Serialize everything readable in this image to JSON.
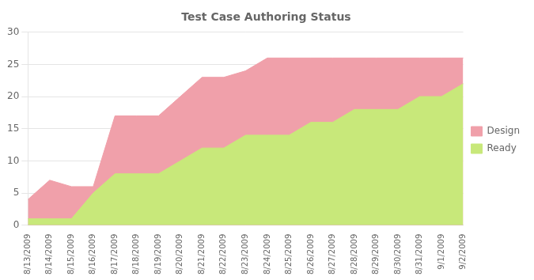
{
  "chart_data": {
    "type": "area",
    "title": "Test Case Authoring Status",
    "categories": [
      "8/13/2009",
      "8/14/2009",
      "8/15/2009",
      "8/16/2009",
      "8/17/2009",
      "8/18/2009",
      "8/19/2009",
      "8/20/2009",
      "8/21/2009",
      "8/22/2009",
      "8/23/2009",
      "8/24/2009",
      "8/25/2009",
      "8/26/2009",
      "8/27/2009",
      "8/28/2009",
      "8/29/2009",
      "8/30/2009",
      "8/31/2009",
      "9/1/2009",
      "9/2/2009"
    ],
    "series": [
      {
        "name": "Design",
        "color": "#f0a0aa",
        "values": [
          4,
          7,
          6,
          6,
          17,
          17,
          17,
          20,
          23,
          23,
          24,
          26,
          26,
          26,
          26,
          26,
          26,
          26,
          26,
          26,
          26
        ]
      },
      {
        "name": "Ready",
        "color": "#c8e87a",
        "values": [
          1,
          1,
          1,
          5,
          8,
          8,
          8,
          10,
          12,
          12,
          14,
          14,
          14,
          16,
          16,
          18,
          18,
          18,
          20,
          20,
          22
        ]
      }
    ],
    "ylim": [
      0,
      30
    ],
    "yticks": [
      0,
      5,
      10,
      15,
      20,
      25,
      30
    ],
    "grid": true,
    "legend": "right"
  }
}
